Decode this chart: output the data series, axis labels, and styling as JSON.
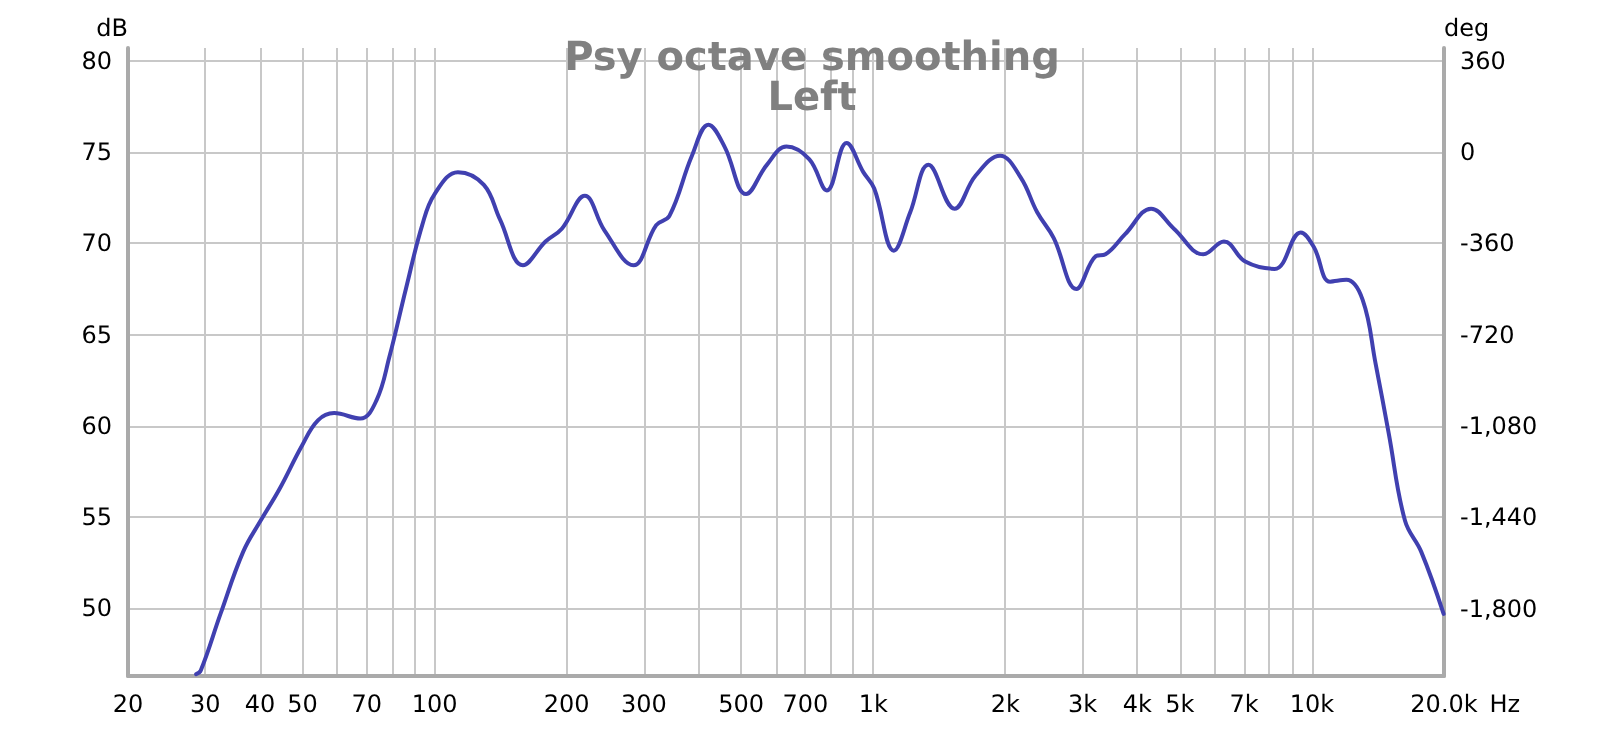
{
  "chart_data": {
    "type": "line",
    "title": "Psy octave smoothing",
    "subtitle": "Left",
    "ylabel": "dB",
    "y2label": "deg",
    "x": [
      28.6,
      29.3,
      32.5,
      36.6,
      40.1,
      44.2,
      49.8,
      54.2,
      59,
      67.7,
      73.7,
      78.9,
      86,
      93.7,
      100,
      113,
      129.5,
      141,
      159,
      179,
      195,
      220,
      244,
      284,
      320,
      343,
      386,
      421,
      458,
      513,
      572,
      634,
      715,
      784,
      869,
      949,
      1005,
      1114,
      1214,
      1336,
      1532,
      1710,
      1946,
      2169,
      2364,
      2577,
      2904,
      3216,
      3383,
      3750,
      4298,
      4845,
      5652,
      6300,
      7046,
      8221,
      9427,
      10100,
      11000,
      11980,
      13050,
      13970,
      14960,
      16300,
      17750,
      19960
    ],
    "series": [
      {
        "color": "#4040b0",
        "values": [
          46.4,
          46.6,
          49.7,
          53.1,
          54.8,
          56.5,
          58.9,
          60.3,
          60.7,
          60.4,
          61.4,
          63.8,
          67.5,
          71.0,
          72.7,
          73.9,
          73.2,
          71.3,
          68.8,
          70.1,
          70.8,
          72.6,
          70.7,
          68.8,
          71.0,
          71.5,
          74.8,
          76.5,
          75.3,
          72.7,
          74.3,
          75.3,
          74.6,
          72.9,
          75.5,
          73.9,
          73.0,
          69.6,
          71.7,
          74.3,
          71.9,
          73.7,
          74.8,
          73.6,
          71.7,
          70.3,
          67.5,
          69.3,
          69.4,
          70.5,
          71.9,
          70.8,
          69.4,
          70.1,
          69.0,
          68.6,
          70.6,
          69.8,
          67.9,
          68.0,
          66.9,
          63.4,
          59.6,
          54.8,
          53.1,
          49.7
        ]
      }
    ],
    "log": "x",
    "grid": true,
    "xlabel": "Hz",
    "marker": "none",
    "line_style": "solid",
    "xlim": [
      20,
      20000
    ],
    "xticks": [
      20,
      30,
      40,
      50,
      {
        "value": 60,
        "label": null
      },
      70,
      {
        "value": 80,
        "label": null
      },
      {
        "value": 90,
        "label": null
      },
      100,
      200,
      300,
      {
        "value": 400,
        "label": null
      },
      500,
      {
        "value": 600,
        "label": null
      },
      700,
      {
        "value": 800,
        "label": null
      },
      {
        "value": 900,
        "label": null
      },
      {
        "value": 1000,
        "label": "1k"
      },
      {
        "value": 2000,
        "label": "2k"
      },
      {
        "value": 3000,
        "label": "3k"
      },
      {
        "value": 4000,
        "label": "4k"
      },
      {
        "value": 5000,
        "label": "5k"
      },
      {
        "value": 6000,
        "label": null
      },
      {
        "value": 7000,
        "label": "7k"
      },
      {
        "value": 8000,
        "label": null
      },
      {
        "value": 9000,
        "label": null
      },
      {
        "value": 10000,
        "label": "10k"
      },
      {
        "value": 20000,
        "label": "20.0k"
      }
    ],
    "ylim": [
      46.3,
      80.7
    ],
    "yticks": [
      50,
      55,
      60,
      65,
      70,
      75,
      80
    ],
    "y2lim": [
      -2066,
      410
    ],
    "y2ticks": [
      360,
      0,
      -360,
      -720,
      {
        "value": -1080,
        "label": "-1,080"
      },
      {
        "value": -1440,
        "label": "-1,440"
      },
      {
        "value": -1800,
        "label": "-1,800"
      }
    ]
  }
}
